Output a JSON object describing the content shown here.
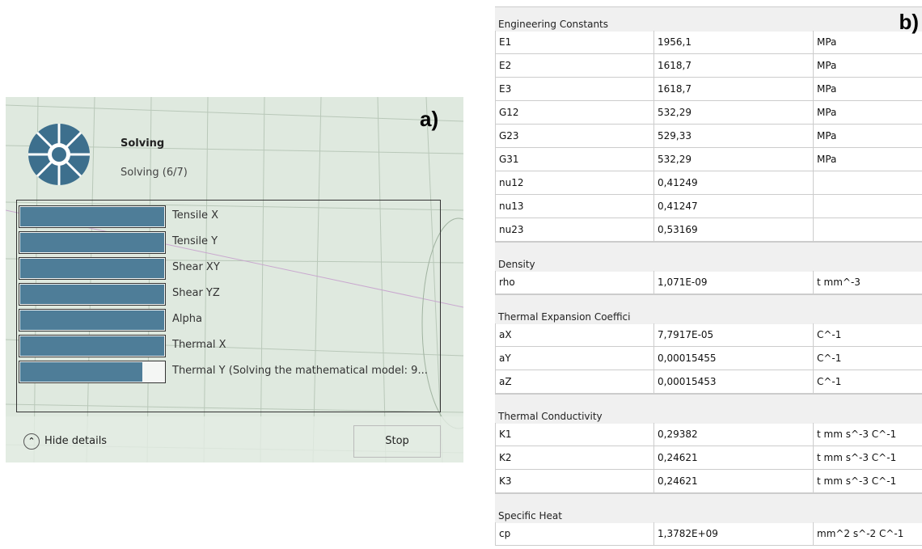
{
  "panel_a": {
    "tag": "a)",
    "title": "Solving",
    "status": "Solving (6/7)",
    "tasks": [
      {
        "label": "Tensile X",
        "progress": 100
      },
      {
        "label": "Tensile Y",
        "progress": 100
      },
      {
        "label": "Shear XY",
        "progress": 100
      },
      {
        "label": "Shear YZ",
        "progress": 100
      },
      {
        "label": "Alpha",
        "progress": 100
      },
      {
        "label": "Thermal X",
        "progress": 100
      },
      {
        "label": "Thermal Y (Solving the mathematical model: 9...",
        "progress": 85
      }
    ],
    "hide_button": "Hide details",
    "stop_button": "Stop"
  },
  "panel_b": {
    "tag": "b)",
    "sections": [
      {
        "title": "Engineering Constants",
        "rows": [
          [
            "E1",
            "1956,1",
            "MPa"
          ],
          [
            "E2",
            "1618,7",
            "MPa"
          ],
          [
            "E3",
            "1618,7",
            "MPa"
          ],
          [
            "G12",
            "532,29",
            "MPa"
          ],
          [
            "G23",
            "529,33",
            "MPa"
          ],
          [
            "G31",
            "532,29",
            "MPa"
          ],
          [
            "nu12",
            "0,41249"
          ],
          [
            "nu13",
            "0,41247"
          ],
          [
            "nu23",
            "0,53169"
          ]
        ]
      },
      {
        "title": "Density",
        "rows": [
          [
            "rho",
            "1,071E-09",
            "t mm^-3"
          ]
        ]
      },
      {
        "title": "Thermal Expansion Coeffici",
        "rows": [
          [
            "aX",
            "7,7917E-05",
            "C^-1"
          ],
          [
            "aY",
            "0,00015455",
            "C^-1"
          ],
          [
            "aZ",
            "0,00015453",
            "C^-1"
          ]
        ]
      },
      {
        "title": "Thermal Conductivity",
        "rows": [
          [
            "K1",
            "0,29382",
            "t mm s^-3 C^-1"
          ],
          [
            "K2",
            "0,24621",
            "t mm s^-3 C^-1"
          ],
          [
            "K3",
            "0,24621",
            "t mm s^-3 C^-1"
          ]
        ]
      },
      {
        "title": "Specific Heat",
        "rows": [
          [
            "cp",
            "1,3782E+09",
            "mm^2 s^-2 C^-1"
          ]
        ]
      }
    ]
  }
}
